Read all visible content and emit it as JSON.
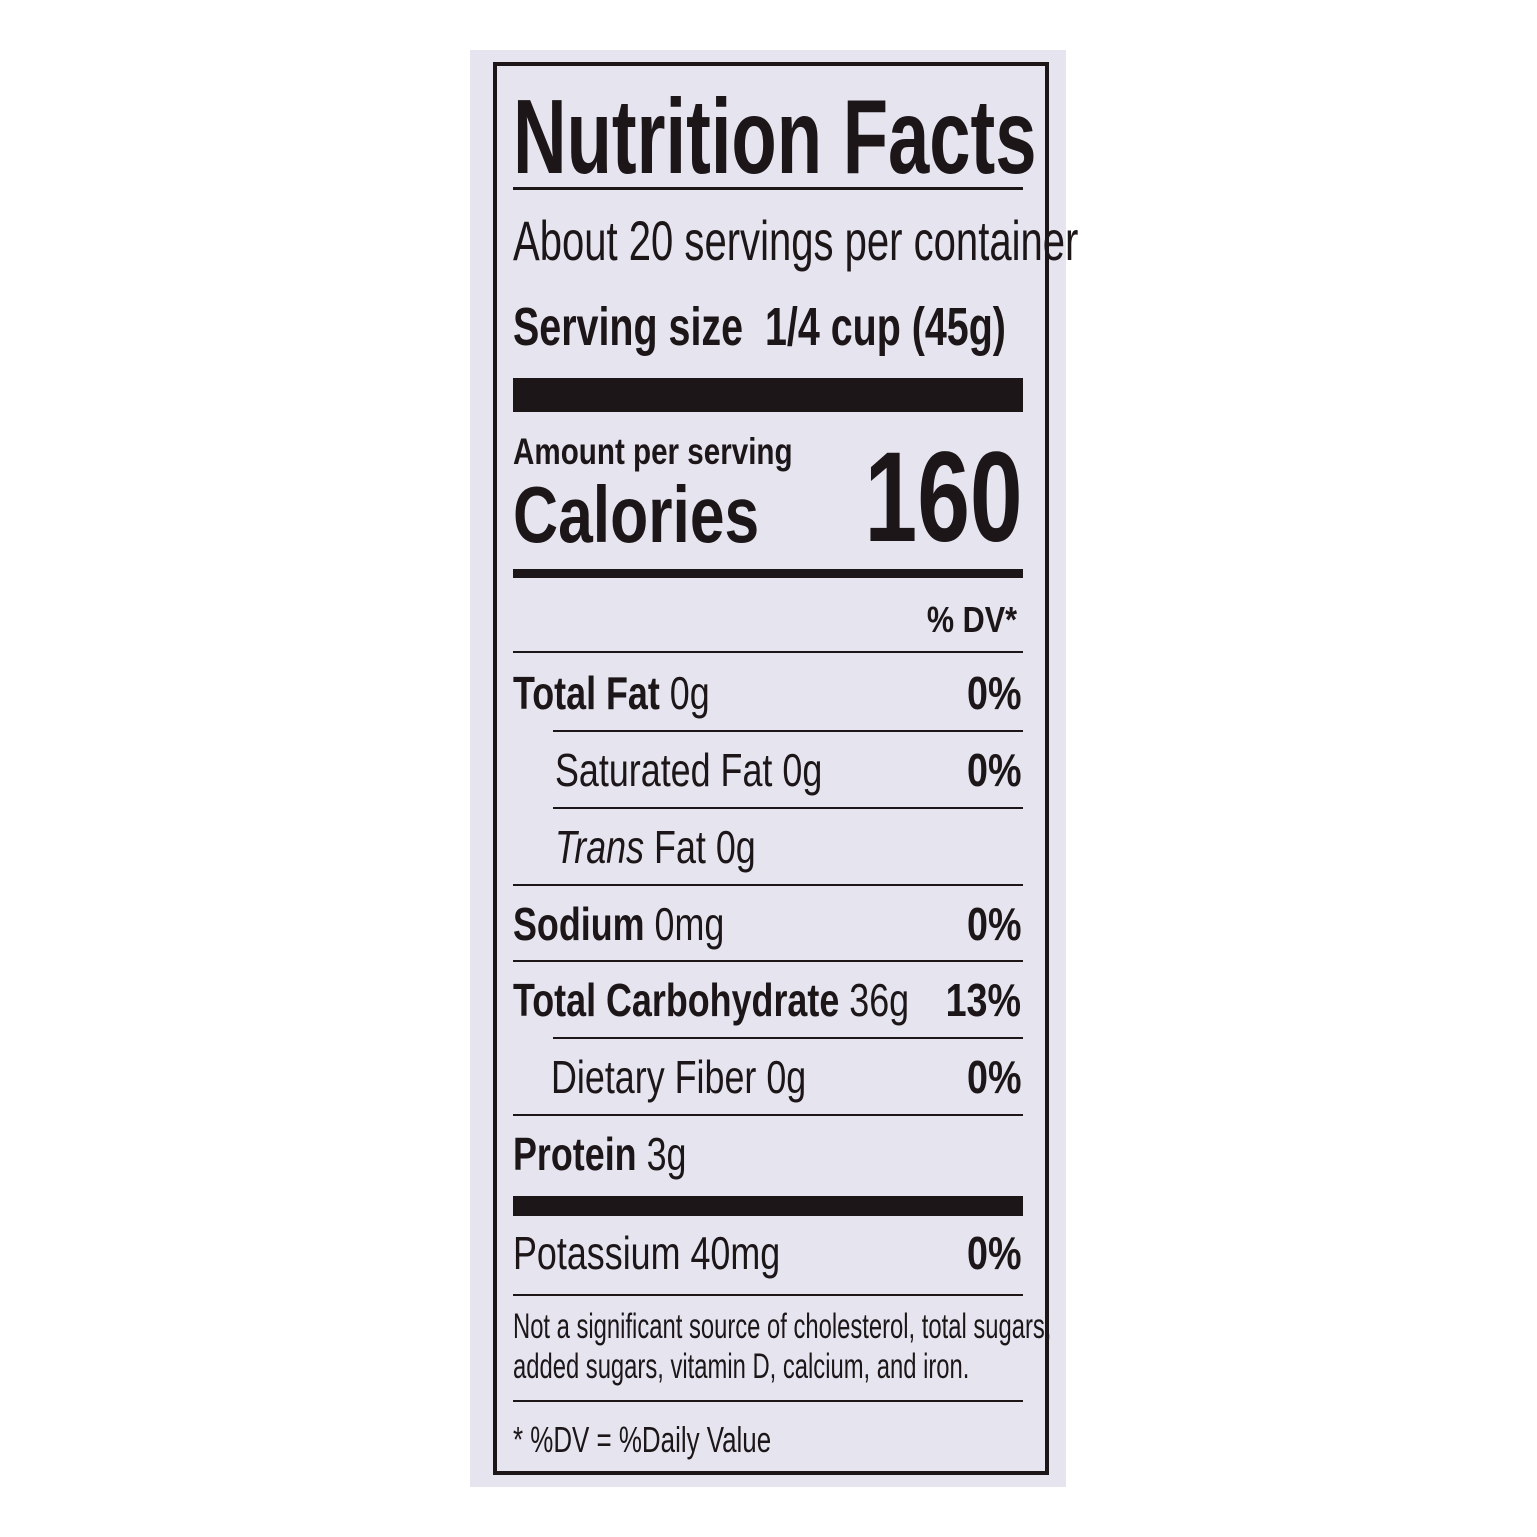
{
  "label": {
    "title": "Nutrition Facts",
    "servings_per_container": "About 20 servings per container",
    "serving_size_label": "Serving size",
    "serving_size_value": "1/4 cup (45g)",
    "amount_per_serving": "Amount per serving",
    "calories_label": "Calories",
    "calories_value": "160",
    "dv_header": "% DV*",
    "nutrients": [
      {
        "name": "Total Fat",
        "amount": "0g",
        "dv": "0%"
      },
      {
        "name": "Saturated Fat",
        "amount": "0g",
        "dv": "0%"
      },
      {
        "name": "Trans",
        "name_rest": "Fat",
        "amount": "0g",
        "dv": ""
      },
      {
        "name": "Sodium",
        "amount": "0mg",
        "dv": "0%"
      },
      {
        "name": "Total Carbohydrate",
        "amount": "36g",
        "dv": "13%"
      },
      {
        "name": "Dietary Fiber",
        "amount": "0g",
        "dv": "0%"
      },
      {
        "name": "Protein",
        "amount": "3g",
        "dv": ""
      },
      {
        "name": "Potassium",
        "amount": "40mg",
        "dv": "0%"
      }
    ],
    "footnote_sources": "Not a significant source of cholesterol, total sugars,",
    "footnote_sources_2": "added sugars, vitamin D, calcium, and iron.",
    "footnote_dv": "* %DV = %Daily Value"
  },
  "colors": {
    "ink": "#1c1618",
    "package": "#e6e4ef",
    "background": "#ffffff"
  }
}
